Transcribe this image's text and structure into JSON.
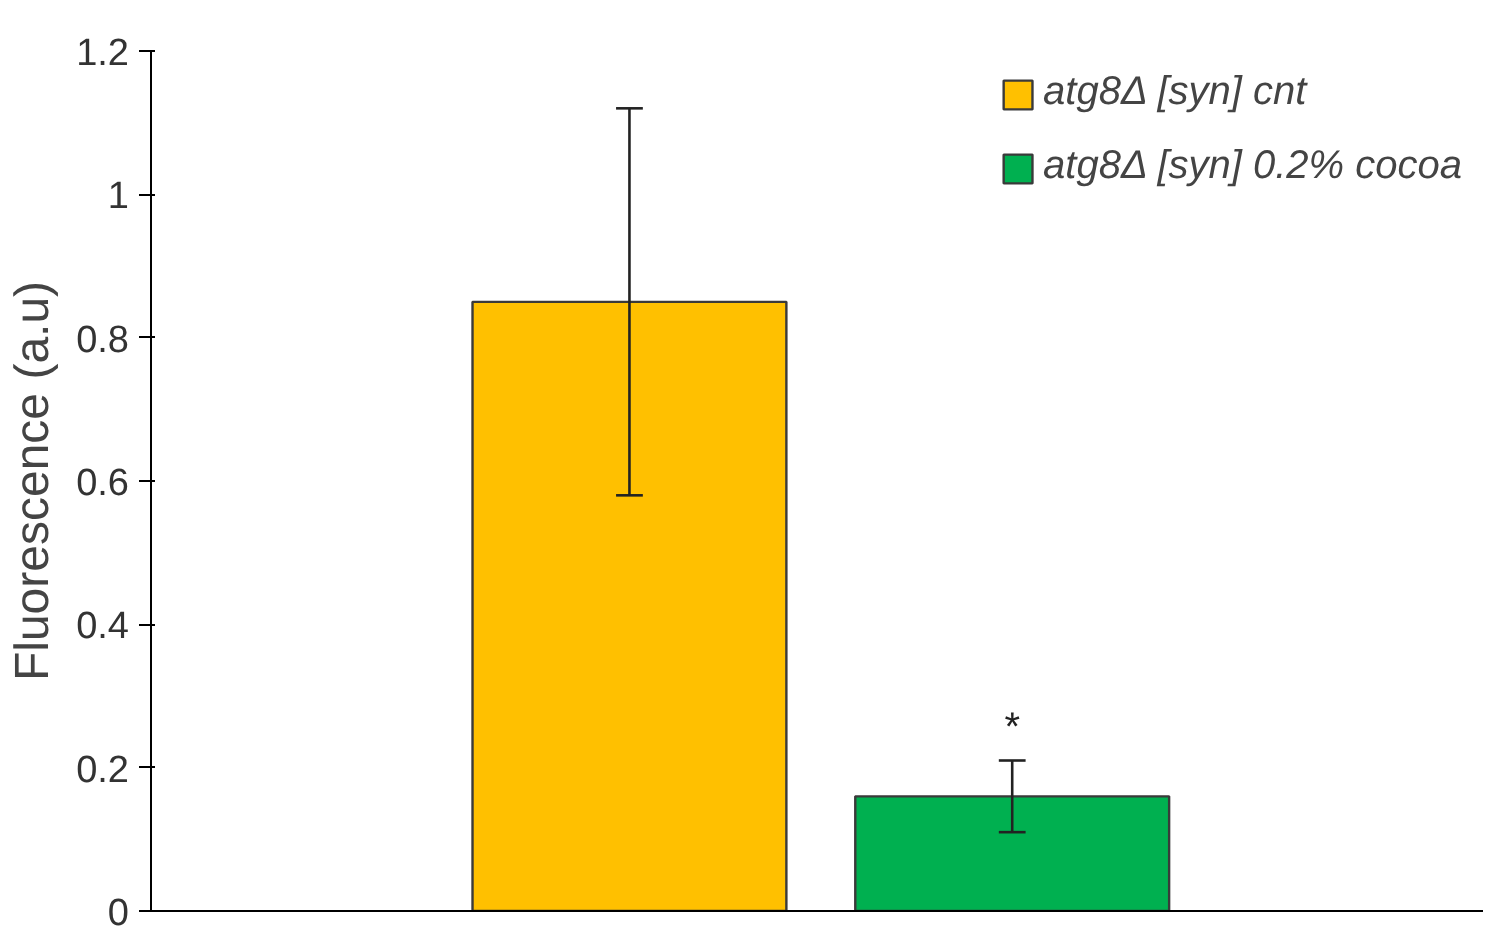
{
  "chart_data": {
    "type": "bar",
    "ylabel": "Fluorescence (a.u)",
    "categories": [
      null,
      null
    ],
    "series": [
      {
        "name": "atg8Δ [syn] cnt",
        "color": "#ffc000",
        "values": [
          0.85,
          null
        ],
        "errors": [
          [
            0.58,
            1.12
          ],
          null
        ]
      },
      {
        "name": "atg8Δ [syn] 0.2% cocoa",
        "color": "#00b050",
        "values": [
          null,
          0.16
        ],
        "errors": [
          null,
          [
            0.11,
            0.21
          ]
        ],
        "value_labels": [
          null,
          "*"
        ]
      }
    ],
    "ylim": [
      0,
      1.2
    ],
    "yticks": [
      0,
      0.2,
      0.4,
      0.6,
      0.8,
      1,
      1.2
    ],
    "legend": "top right",
    "tick_labels": "y"
  }
}
